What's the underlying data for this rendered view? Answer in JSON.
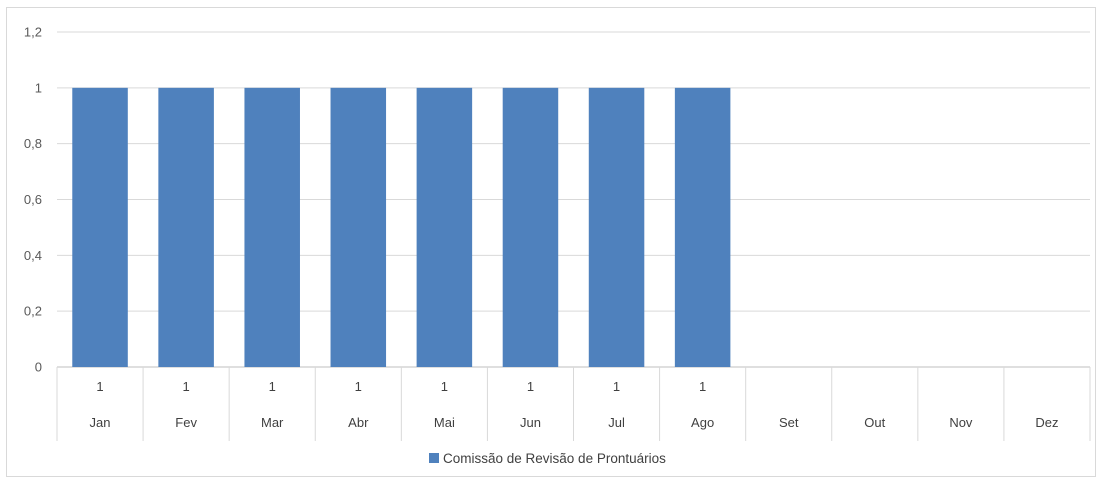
{
  "chart_data": {
    "type": "bar",
    "categories": [
      "Jan",
      "Fev",
      "Mar",
      "Abr",
      "Mai",
      "Jun",
      "Jul",
      "Ago",
      "Set",
      "Out",
      "Nov",
      "Dez"
    ],
    "series": [
      {
        "name": "Comissão de Revisão de Prontuários",
        "color": "#4F81BD",
        "values": [
          1,
          1,
          1,
          1,
          1,
          1,
          1,
          1,
          null,
          null,
          null,
          null
        ]
      }
    ],
    "data_labels": [
      "1",
      "1",
      "1",
      "1",
      "1",
      "1",
      "1",
      "1",
      "",
      "",
      "",
      ""
    ],
    "ylim": [
      0,
      1.2
    ],
    "yticks": [
      0,
      0.2,
      0.4,
      0.6,
      0.8,
      1,
      1.2
    ],
    "ytick_labels": [
      "0",
      "0,2",
      "0,4",
      "0,6",
      "0,8",
      "1",
      "1,2"
    ],
    "grid": true,
    "legend_position": "bottom",
    "data_table": true
  }
}
